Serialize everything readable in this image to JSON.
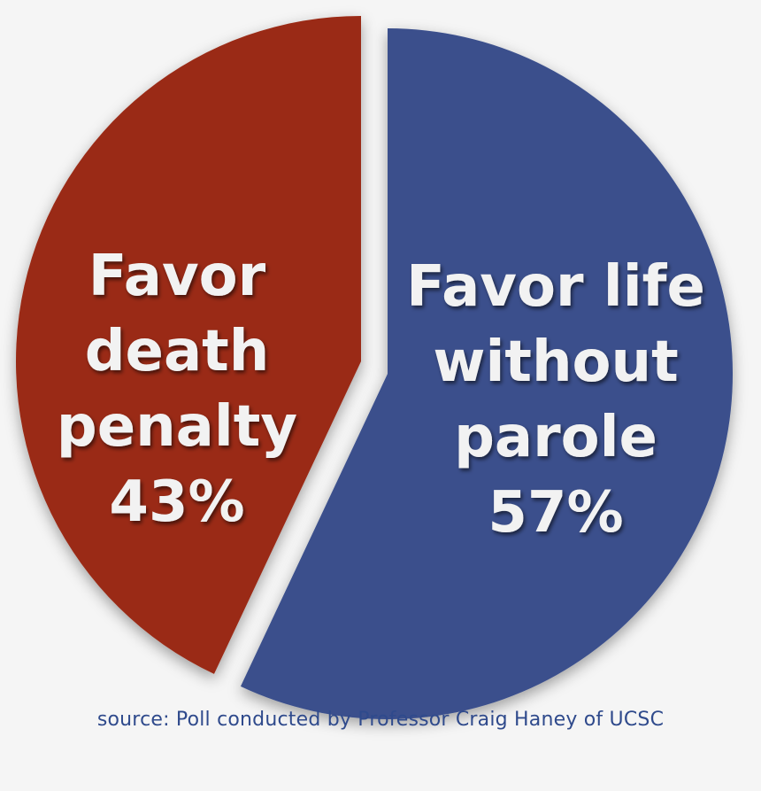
{
  "chart_data": {
    "type": "pie",
    "slices": [
      {
        "label_lines": [
          "Favor life",
          "without",
          "parole",
          "57%"
        ],
        "value": 57,
        "color": "#3a4f8c"
      },
      {
        "label_lines": [
          "Favor",
          "death",
          "penalty",
          "43%"
        ],
        "value": 43,
        "color": "#9a2a14"
      }
    ],
    "start": "12 o'clock",
    "direction": "clockwise",
    "legend": "none",
    "note": "source: Poll conducted by Professor Craig Haney of UCSC"
  }
}
